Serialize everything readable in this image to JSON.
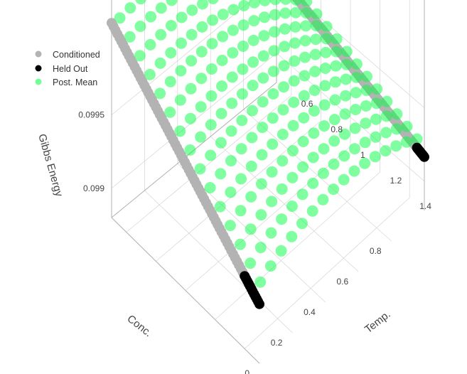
{
  "chart_data": {
    "type": "scatter3d",
    "legend": {
      "placement": "top-left",
      "items": [
        {
          "name": "Conditioned",
          "color": "#b3b3b3"
        },
        {
          "name": "Held Out",
          "color": "#000000"
        },
        {
          "name": "Post. Mean",
          "color": "#00ff40"
        }
      ]
    },
    "axes": {
      "x": {
        "title": "Conc.",
        "range": [
          0,
          1
        ],
        "ticks": [
          "0",
          "0.2",
          "0.4",
          "0.6",
          "0.8"
        ],
        "tick_values": [
          0,
          0.2,
          0.4,
          0.6,
          0.8
        ]
      },
      "y": {
        "title": "Temp.",
        "range": [
          0.5,
          1.5
        ],
        "ticks": [
          "0.6",
          "0.8",
          "1",
          "1.2",
          "1.4"
        ],
        "tick_values": [
          0.6,
          0.8,
          1.0,
          1.2,
          1.4
        ]
      },
      "z": {
        "title": "Gibbs Energy",
        "range": [
          0.0988,
          0.1004
        ],
        "ticks": [
          "0.099",
          "0.0995"
        ],
        "tick_values": [
          0.099,
          0.0995
        ]
      }
    },
    "grid": true,
    "series": [
      {
        "name": "Post. Mean",
        "surface": "posterior mean over Conc. x Temp. grid",
        "x_samples": 16,
        "y_samples": 15,
        "x_range": [
          0.05,
          1.0
        ],
        "y_range": [
          0.5,
          1.45
        ],
        "z_low": 0.0992,
        "z_high": 0.1003
      },
      {
        "name": "Conditioned",
        "lines": [
          {
            "fixed": "x",
            "x": 0.0,
            "y_range": [
              0.5,
              1.4
            ]
          },
          {
            "fixed": "x",
            "x": 1.0,
            "y_range": [
              0.5,
              1.45
            ]
          }
        ]
      },
      {
        "name": "Held Out",
        "lines": [
          {
            "fixed": "x",
            "x": 0.0,
            "y_range": [
              1.4,
              1.5
            ]
          },
          {
            "fixed": "x",
            "x": 1.0,
            "y_range": [
              1.45,
              1.5
            ]
          }
        ]
      }
    ]
  }
}
